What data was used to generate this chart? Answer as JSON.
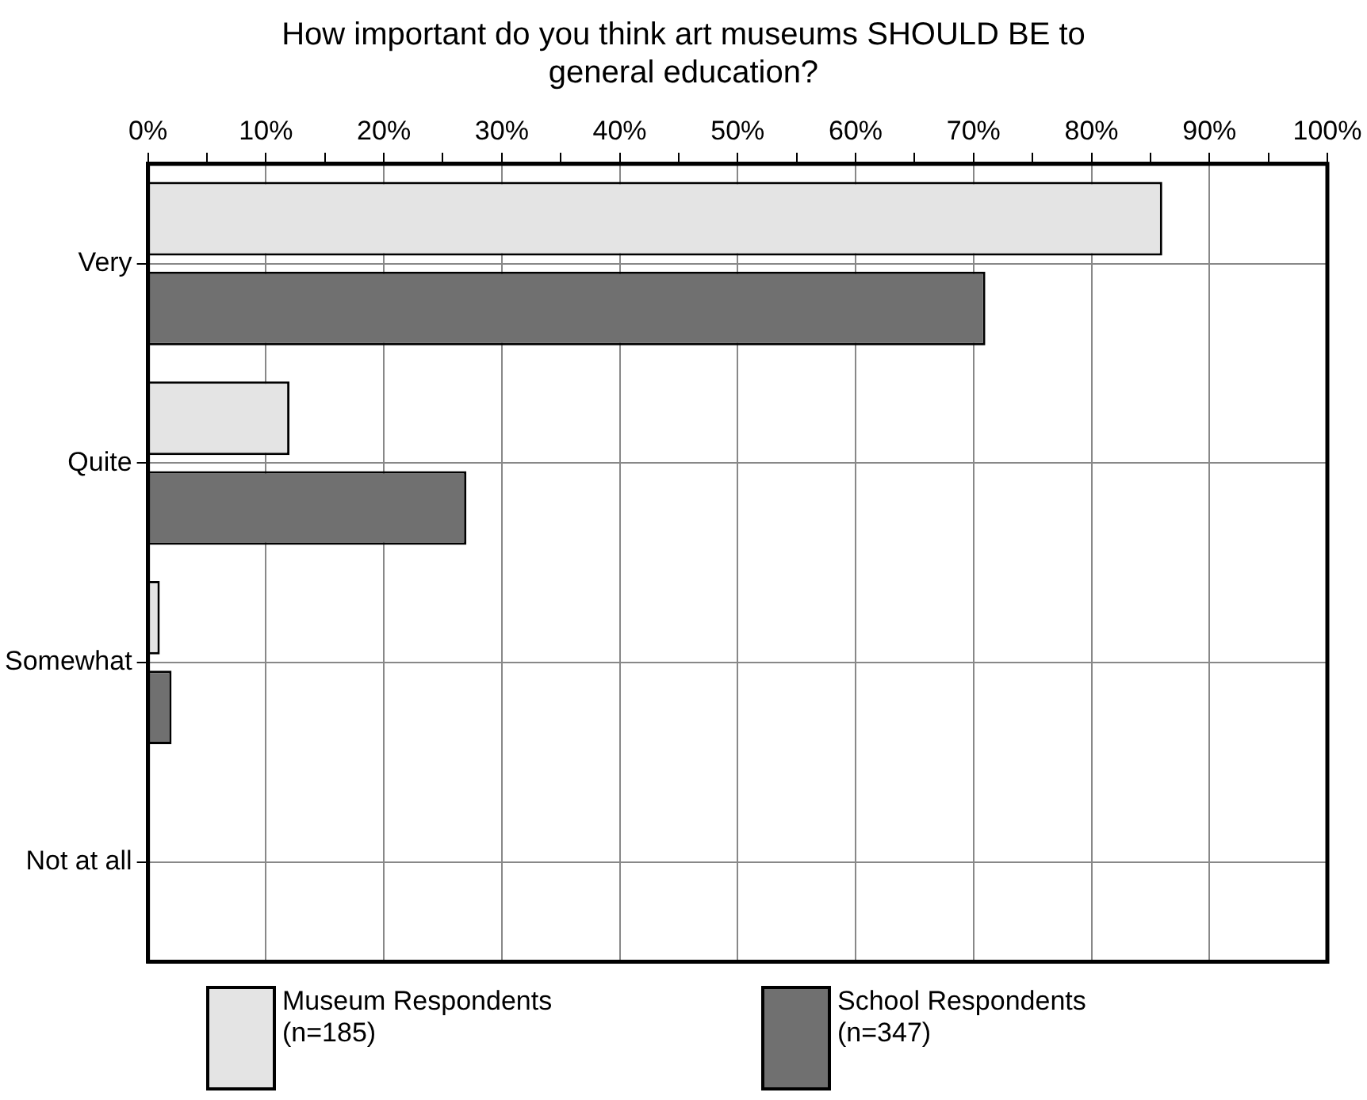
{
  "chart_data": {
    "type": "bar",
    "orientation": "horizontal",
    "title": "How important do you think art museums SHOULD BE to general education?",
    "categories": [
      "Very",
      "Quite",
      "Somewhat",
      "Not at all"
    ],
    "series": [
      {
        "name": "Museum Respondents (n=185)",
        "color": "#e4e4e4",
        "values": [
          86,
          12,
          1,
          0
        ]
      },
      {
        "name": "School Respondents (n=347)",
        "color": "#707070",
        "values": [
          71,
          27,
          2,
          0
        ]
      }
    ],
    "xlim": [
      0,
      100
    ],
    "xticks": [
      {
        "value": 0,
        "label": "0%"
      },
      {
        "value": 5,
        "label": null
      },
      {
        "value": 10,
        "label": "10%"
      },
      {
        "value": 15,
        "label": null
      },
      {
        "value": 20,
        "label": "20%"
      },
      {
        "value": 25,
        "label": null
      },
      {
        "value": 30,
        "label": "30%"
      },
      {
        "value": 35,
        "label": null
      },
      {
        "value": 40,
        "label": "40%"
      },
      {
        "value": 45,
        "label": null
      },
      {
        "value": 50,
        "label": "50%"
      },
      {
        "value": 55,
        "label": null
      },
      {
        "value": 60,
        "label": "60%"
      },
      {
        "value": 65,
        "label": null
      },
      {
        "value": 70,
        "label": "70%"
      },
      {
        "value": 75,
        "label": null
      },
      {
        "value": 80,
        "label": "80%"
      },
      {
        "value": 85,
        "label": null
      },
      {
        "value": 90,
        "label": "90%"
      },
      {
        "value": 95,
        "label": null
      },
      {
        "value": 100,
        "label": "100%"
      }
    ],
    "grid": true,
    "legend": "bottom"
  }
}
